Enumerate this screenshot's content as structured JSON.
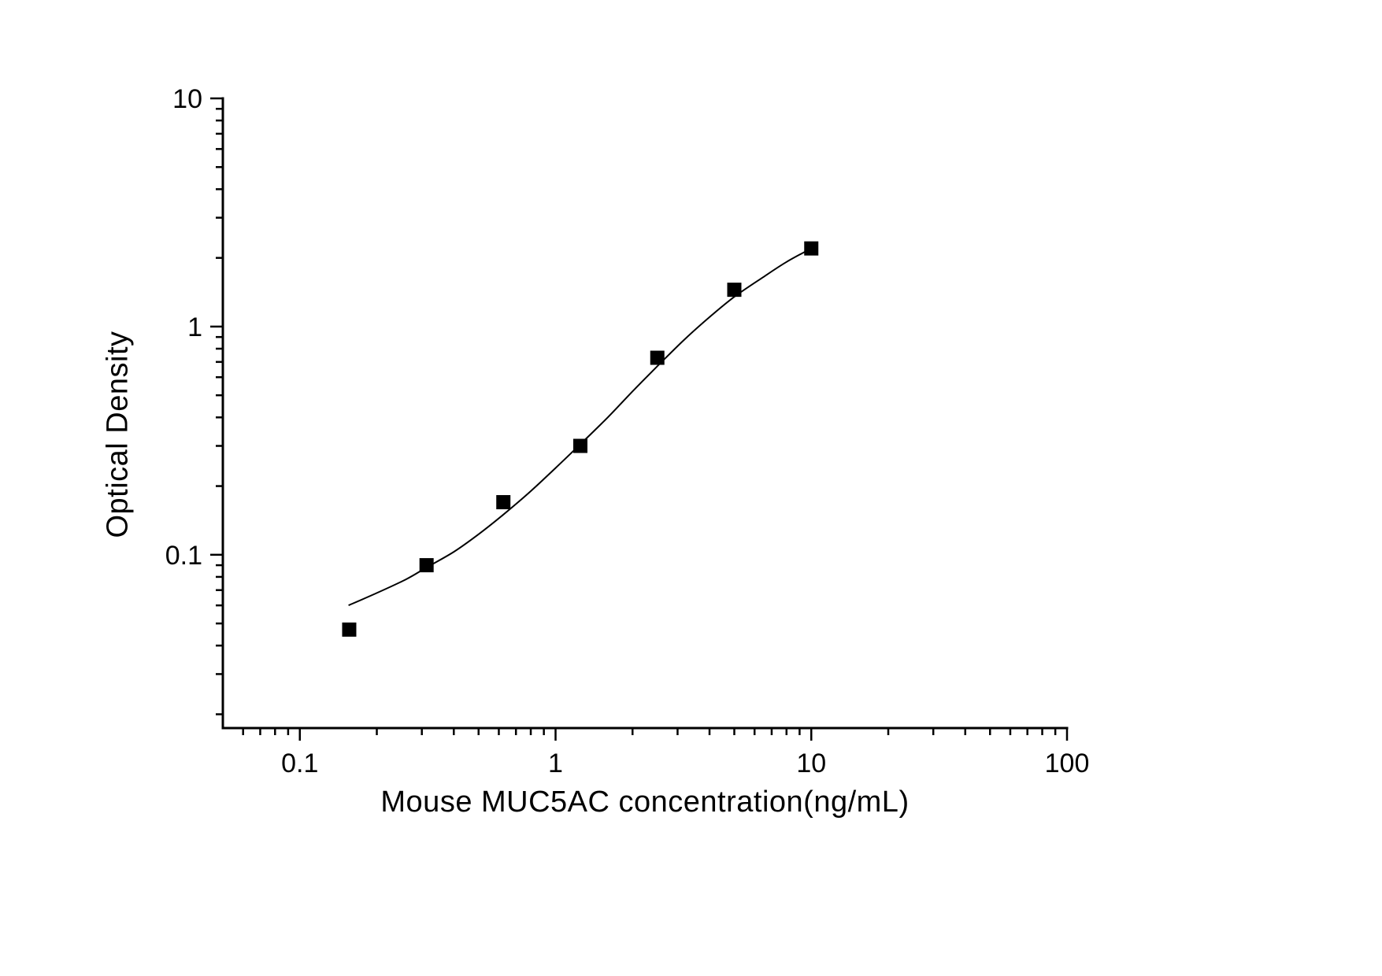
{
  "chart_data": {
    "type": "scatter",
    "title": "",
    "xlabel": "Mouse MUC5AC concentration(ng/mL)",
    "ylabel": "Optical Density",
    "xscale": "log",
    "yscale": "log",
    "xlim": [
      0.05,
      100
    ],
    "ylim": [
      0.0174,
      10
    ],
    "grid": false,
    "legend": false,
    "axis_color": "#000000",
    "x_major_ticks": [
      0.1,
      1,
      10,
      100
    ],
    "x_tick_labels": [
      "0.1",
      "1",
      "10",
      "100"
    ],
    "y_major_ticks": [
      0.1,
      1,
      10
    ],
    "y_tick_labels": [
      "0.1",
      "1",
      "10"
    ],
    "series": [
      {
        "name": "standard-curve-points",
        "marker": "square",
        "marker_color": "#000000",
        "x": [
          0.156,
          0.313,
          0.625,
          1.25,
          2.5,
          5,
          10
        ],
        "y": [
          0.047,
          0.09,
          0.17,
          0.3,
          0.73,
          1.45,
          2.2
        ]
      }
    ],
    "fit_curve": {
      "name": "four-parameter-logistic-fit",
      "color": "#000000",
      "x": [
        0.155,
        0.2,
        0.26,
        0.313,
        0.4,
        0.5,
        0.625,
        0.8,
        1.0,
        1.25,
        1.6,
        2.0,
        2.5,
        3.2,
        4.0,
        5.0,
        6.5,
        8.0,
        10.0
      ],
      "y": [
        0.06,
        0.068,
        0.078,
        0.088,
        0.103,
        0.123,
        0.15,
        0.19,
        0.24,
        0.305,
        0.4,
        0.52,
        0.67,
        0.88,
        1.1,
        1.35,
        1.65,
        1.92,
        2.2
      ]
    }
  }
}
